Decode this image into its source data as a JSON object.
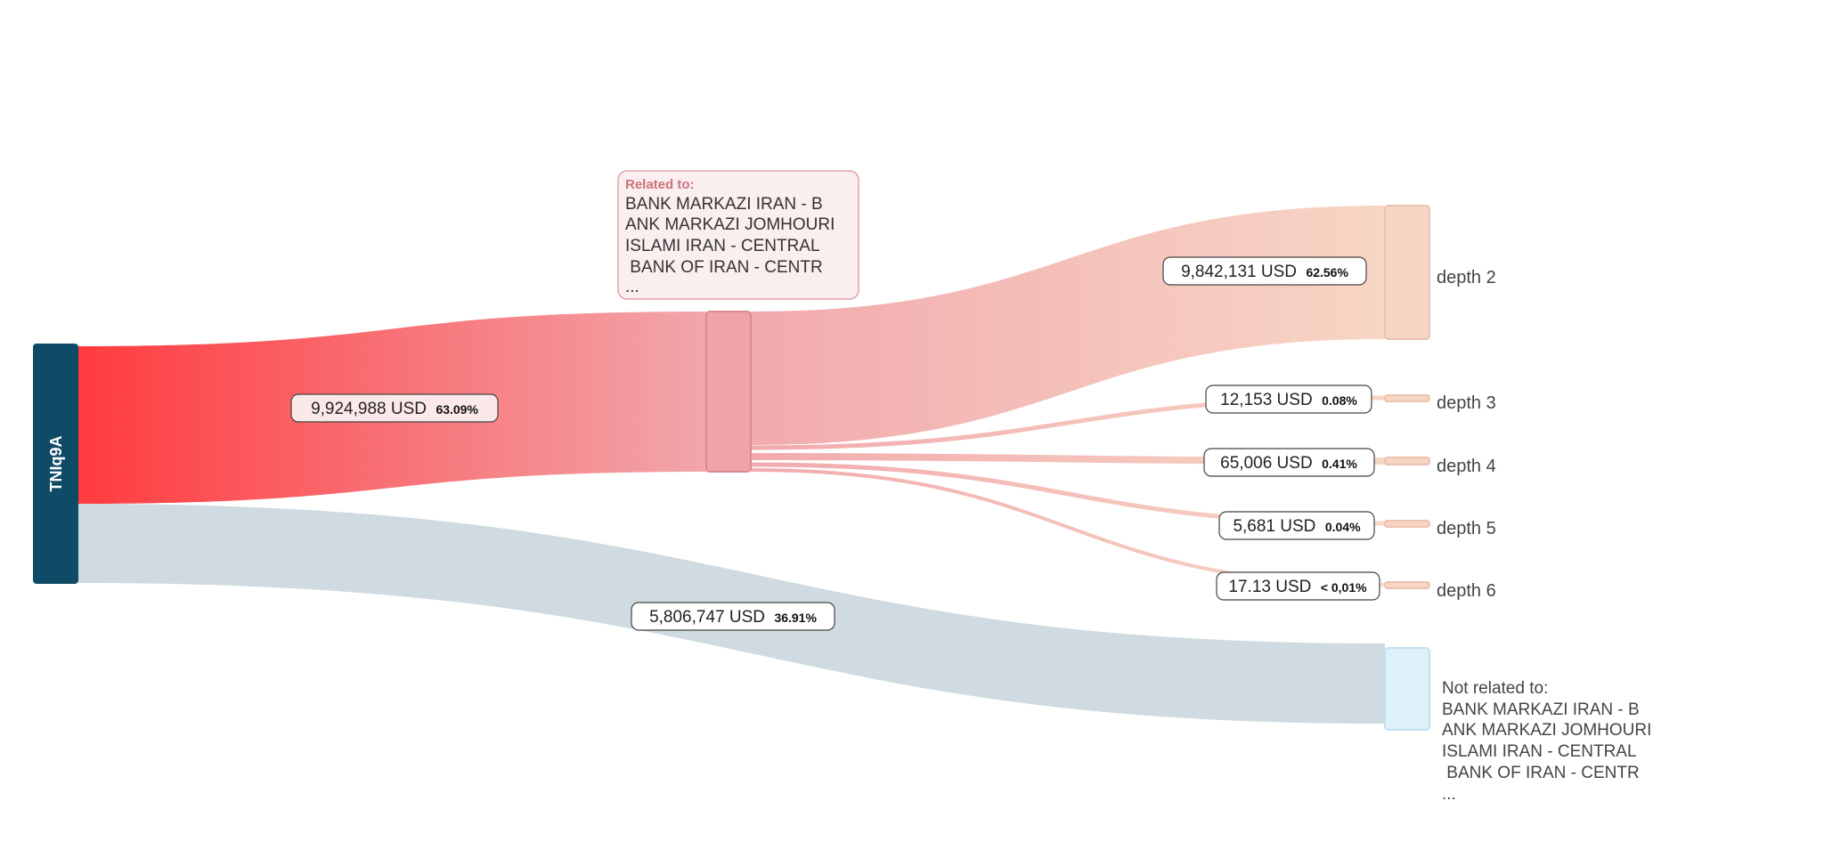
{
  "source_node": {
    "label": "TNIq9A",
    "color": "#0f4b66"
  },
  "related_node": {
    "tooltip_title": "Related to:",
    "tooltip_lines": [
      "BANK MARKAZI IRAN - B",
      "ANK MARKAZI JOMHOURI",
      "ISLAMI IRAN - CENTRAL",
      " BANK OF IRAN - CENTR",
      "..."
    ],
    "fill": "#efa3aa"
  },
  "depth_nodes": [
    {
      "label": "depth 2",
      "fill": "#f6d5c4"
    },
    {
      "label": "depth 3",
      "fill": "#f6d5c4"
    },
    {
      "label": "depth 4",
      "fill": "#f6d5c4"
    },
    {
      "label": "depth 5",
      "fill": "#f6d5c4"
    },
    {
      "label": "depth 6",
      "fill": "#f6d5c4"
    }
  ],
  "not_related_node": {
    "title": "Not related to:",
    "lines": [
      "BANK MARKAZI IRAN - B",
      "ANK MARKAZI JOMHOURI",
      "ISLAMI IRAN - CENTRAL",
      " BANK OF IRAN - CENTR",
      "..."
    ],
    "fill": "#def1f9"
  },
  "flows": {
    "related": {
      "amount": "9,924,988 USD",
      "pct": "63.09%",
      "from_color": "#ff3b3f",
      "to_color": "#f1a7ab"
    },
    "not_related": {
      "amount": "5,806,747 USD",
      "pct": "36.91%",
      "color": "#cfdbe0"
    },
    "depth2": {
      "amount": "9,842,131 USD",
      "pct": "62.56%"
    },
    "depth3": {
      "amount": "12,153 USD",
      "pct": "0.08%"
    },
    "depth4": {
      "amount": "65,006 USD",
      "pct": "0.41%"
    },
    "depth5": {
      "amount": "5,681 USD",
      "pct": "0.04%"
    },
    "depth6": {
      "amount": "17.13 USD",
      "pct": "< 0,01%"
    },
    "depth_from_color": "#f2aaae",
    "depth_to_color": "#f7d6c5"
  }
}
